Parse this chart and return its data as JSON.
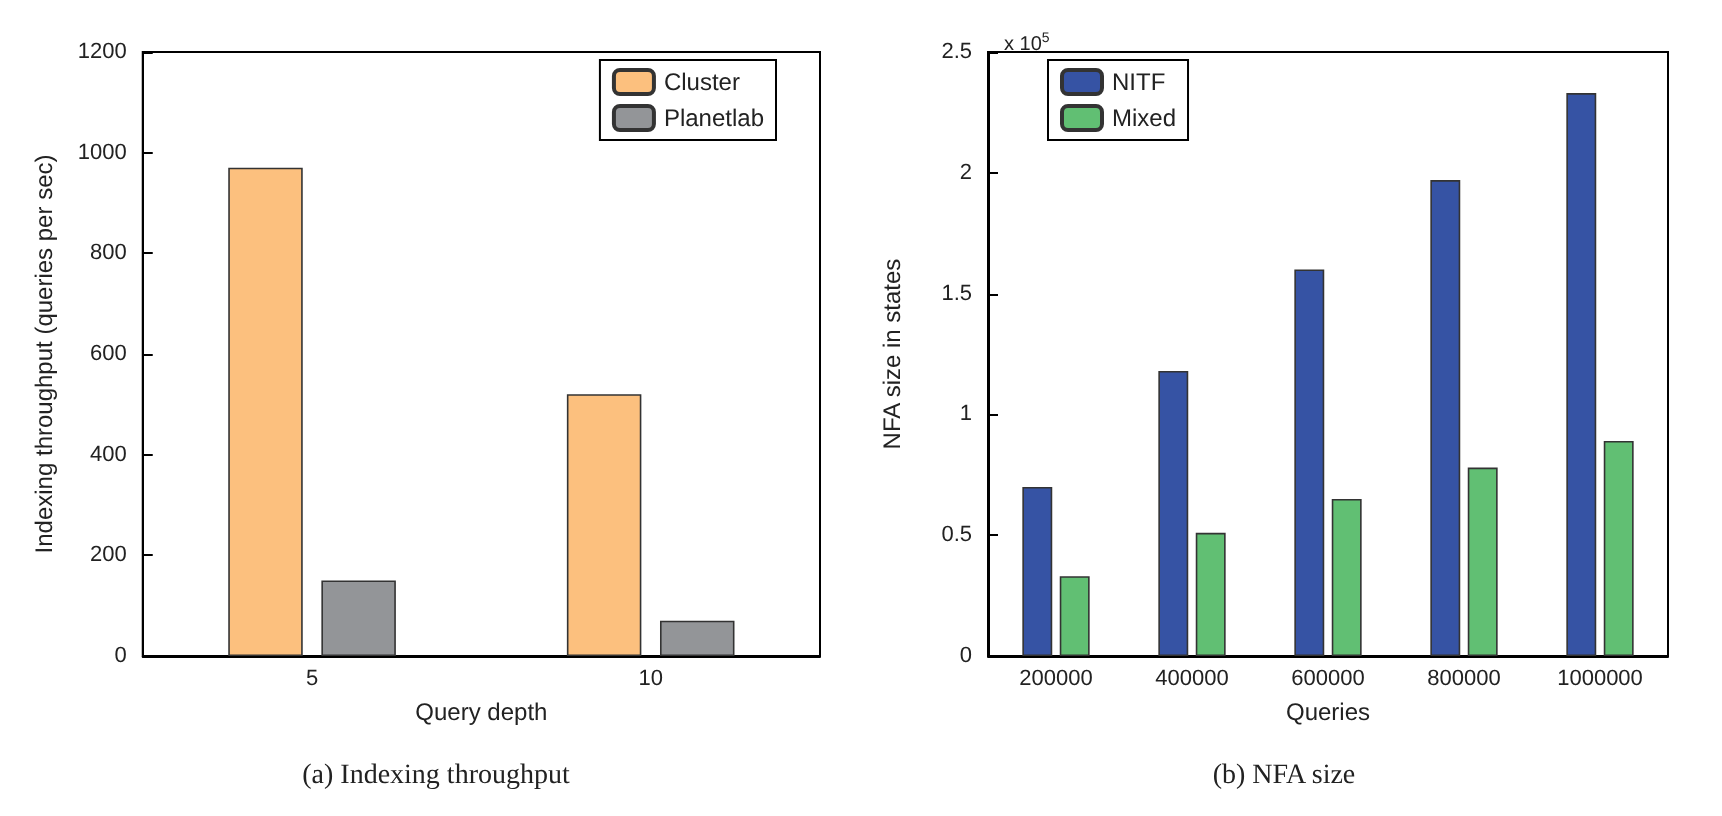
{
  "chart_data": [
    {
      "type": "bar",
      "title": "(a) Indexing throughput",
      "xlabel": "Query depth",
      "ylabel": "Indexing throughput (queries per sec)",
      "categories": [
        "5",
        "10"
      ],
      "series": [
        {
          "name": "Cluster",
          "color": "#fcc07e",
          "values": [
            970,
            520
          ]
        },
        {
          "name": "Planetlab",
          "color": "#939598",
          "values": [
            150,
            70
          ]
        }
      ],
      "ylim": [
        0,
        1200
      ],
      "yticks": [
        0,
        200,
        400,
        600,
        800,
        1000,
        1200
      ],
      "grid": false,
      "legend": "top right"
    },
    {
      "type": "bar",
      "title": "(b) NFA size",
      "xlabel": "Queries",
      "ylabel": "NFA size in states",
      "categories": [
        "200000",
        "400000",
        "600000",
        "800000",
        "1000000"
      ],
      "series": [
        {
          "name": "NITF",
          "color": "#3653a4",
          "values": [
            0.7,
            1.18,
            1.6,
            1.97,
            2.33
          ]
        },
        {
          "name": "Mixed",
          "color": "#61bf73",
          "values": [
            0.33,
            0.51,
            0.65,
            0.78,
            0.89
          ]
        }
      ],
      "ylim": [
        0,
        2.5
      ],
      "yticks": [
        0,
        0.5,
        1,
        1.5,
        2,
        2.5
      ],
      "annotations": [
        "x 10$^{5}$"
      ],
      "grid": false,
      "legend": "top left"
    }
  ]
}
